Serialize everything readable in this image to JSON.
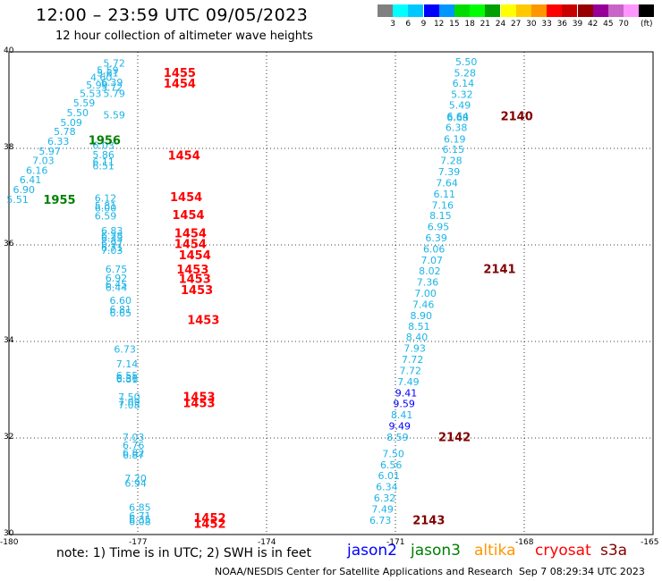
{
  "header": {
    "title": "12:00 – 23:59 UTC 09/05/2023",
    "subtitle": "12 hour collection of altimeter wave heights"
  },
  "legend": {
    "colors": [
      "#808080",
      "#00ffff",
      "#00c8ff",
      "#0000ff",
      "#0096ff",
      "#00dc00",
      "#00ff00",
      "#00a000",
      "#ffff00",
      "#ffc800",
      "#ff9600",
      "#ff0000",
      "#c80000",
      "#960000",
      "#960096",
      "#c864c8",
      "#ff96ff",
      "#000000"
    ],
    "labels": [
      "3",
      "6",
      "9",
      "12",
      "15",
      "18",
      "21",
      "24",
      "27",
      "30",
      "33",
      "36",
      "39",
      "42",
      "45",
      "70",
      "(ft)"
    ],
    "unit": "(ft)"
  },
  "axes": {
    "lat_labels": [
      "40",
      "38",
      "36",
      "34",
      "32",
      "30"
    ],
    "lon_labels": [
      "-180",
      "-177",
      "-174",
      "-171",
      "-168",
      "-165"
    ]
  },
  "track_colors": {
    "cyan": "#1cb4e6",
    "blue": "#0000ff",
    "red": "#ff0000",
    "darkred": "#800000",
    "green": "#008000"
  },
  "chart_data": {
    "type": "scatter",
    "x_range": [
      -180,
      -165
    ],
    "y_range": [
      30,
      40
    ],
    "points": [
      {
        "lon": -169.35,
        "lat": 39.78,
        "v": "5.50",
        "c": "cyan"
      },
      {
        "lon": -169.38,
        "lat": 39.55,
        "v": "5.28",
        "c": "cyan"
      },
      {
        "lon": -169.42,
        "lat": 39.33,
        "v": "6.14",
        "c": "cyan"
      },
      {
        "lon": -169.45,
        "lat": 39.1,
        "v": "5.32",
        "c": "cyan"
      },
      {
        "lon": -169.5,
        "lat": 38.88,
        "v": "5.49",
        "c": "cyan"
      },
      {
        "lon": -169.55,
        "lat": 38.65,
        "v": "6.64",
        "c": "cyan"
      },
      {
        "lon": -169.55,
        "lat": 38.62,
        "v": "6.68",
        "c": "cyan"
      },
      {
        "lon": -169.58,
        "lat": 38.42,
        "v": "6.38",
        "c": "cyan"
      },
      {
        "lon": -169.62,
        "lat": 38.18,
        "v": "6.19",
        "c": "cyan"
      },
      {
        "lon": -169.65,
        "lat": 37.96,
        "v": "6.15",
        "c": "cyan"
      },
      {
        "lon": -169.7,
        "lat": 37.73,
        "v": "7.28",
        "c": "cyan"
      },
      {
        "lon": -169.75,
        "lat": 37.5,
        "v": "7.39",
        "c": "cyan"
      },
      {
        "lon": -169.8,
        "lat": 37.27,
        "v": "7.64",
        "c": "cyan"
      },
      {
        "lon": -169.86,
        "lat": 37.04,
        "v": "6.11",
        "c": "cyan"
      },
      {
        "lon": -169.9,
        "lat": 36.81,
        "v": "7.16",
        "c": "cyan"
      },
      {
        "lon": -169.95,
        "lat": 36.59,
        "v": "8.15",
        "c": "cyan"
      },
      {
        "lon": -170.0,
        "lat": 36.36,
        "v": "6.95",
        "c": "cyan"
      },
      {
        "lon": -170.05,
        "lat": 36.13,
        "v": "6.39",
        "c": "cyan"
      },
      {
        "lon": -170.1,
        "lat": 35.9,
        "v": "6.06",
        "c": "cyan"
      },
      {
        "lon": -170.15,
        "lat": 35.67,
        "v": "7.07",
        "c": "cyan"
      },
      {
        "lon": -170.2,
        "lat": 35.44,
        "v": "8.02",
        "c": "cyan"
      },
      {
        "lon": -170.25,
        "lat": 35.21,
        "v": "7.36",
        "c": "cyan"
      },
      {
        "lon": -170.3,
        "lat": 34.98,
        "v": "7.00",
        "c": "cyan"
      },
      {
        "lon": -170.35,
        "lat": 34.75,
        "v": "7.46",
        "c": "cyan"
      },
      {
        "lon": -170.4,
        "lat": 34.52,
        "v": "8.90",
        "c": "cyan"
      },
      {
        "lon": -170.45,
        "lat": 34.3,
        "v": "8.51",
        "c": "cyan"
      },
      {
        "lon": -170.5,
        "lat": 34.07,
        "v": "8.40",
        "c": "cyan"
      },
      {
        "lon": -170.55,
        "lat": 33.84,
        "v": "7.93",
        "c": "cyan"
      },
      {
        "lon": -170.6,
        "lat": 33.61,
        "v": "7.72",
        "c": "cyan"
      },
      {
        "lon": -170.65,
        "lat": 33.38,
        "v": "7.72",
        "c": "cyan"
      },
      {
        "lon": -170.7,
        "lat": 33.15,
        "v": "7.49",
        "c": "cyan"
      },
      {
        "lon": -170.75,
        "lat": 32.92,
        "v": "9.41",
        "c": "blue"
      },
      {
        "lon": -170.8,
        "lat": 32.69,
        "v": "9.59",
        "c": "blue"
      },
      {
        "lon": -170.85,
        "lat": 32.46,
        "v": "8.41",
        "c": "cyan"
      },
      {
        "lon": -170.9,
        "lat": 32.23,
        "v": "9.49",
        "c": "blue"
      },
      {
        "lon": -170.95,
        "lat": 32.0,
        "v": "8.59",
        "c": "cyan"
      },
      {
        "lon": -171.05,
        "lat": 31.66,
        "v": "7.50",
        "c": "cyan"
      },
      {
        "lon": -171.1,
        "lat": 31.43,
        "v": "6.56",
        "c": "cyan"
      },
      {
        "lon": -171.15,
        "lat": 31.2,
        "v": "6.01",
        "c": "cyan"
      },
      {
        "lon": -171.2,
        "lat": 30.97,
        "v": "6.34",
        "c": "cyan"
      },
      {
        "lon": -171.25,
        "lat": 30.74,
        "v": "6.32",
        "c": "cyan"
      },
      {
        "lon": -171.3,
        "lat": 30.51,
        "v": "7.49",
        "c": "cyan"
      },
      {
        "lon": -171.35,
        "lat": 30.28,
        "v": "6.73",
        "c": "cyan"
      },
      {
        "lon": -177.55,
        "lat": 39.75,
        "v": "5.72",
        "c": "cyan"
      },
      {
        "lon": -177.7,
        "lat": 39.6,
        "v": "5.59",
        "c": "cyan"
      },
      {
        "lon": -177.7,
        "lat": 39.55,
        "v": "5.61",
        "c": "cyan"
      },
      {
        "lon": -177.85,
        "lat": 39.45,
        "v": "4.60",
        "c": "cyan"
      },
      {
        "lon": -177.6,
        "lat": 39.35,
        "v": "6.39",
        "c": "cyan"
      },
      {
        "lon": -177.95,
        "lat": 39.3,
        "v": "5.99",
        "c": "cyan"
      },
      {
        "lon": -177.6,
        "lat": 39.25,
        "v": "5.72",
        "c": "cyan"
      },
      {
        "lon": -178.1,
        "lat": 39.12,
        "v": "5.53",
        "c": "cyan"
      },
      {
        "lon": -177.55,
        "lat": 39.12,
        "v": "5.79",
        "c": "cyan"
      },
      {
        "lon": -178.25,
        "lat": 38.93,
        "v": "5.59",
        "c": "cyan"
      },
      {
        "lon": -178.4,
        "lat": 38.72,
        "v": "5.50",
        "c": "cyan"
      },
      {
        "lon": -177.55,
        "lat": 38.68,
        "v": "5.59",
        "c": "cyan"
      },
      {
        "lon": -178.55,
        "lat": 38.52,
        "v": "5.09",
        "c": "cyan"
      },
      {
        "lon": -178.7,
        "lat": 38.33,
        "v": "5.78",
        "c": "cyan"
      },
      {
        "lon": -178.85,
        "lat": 38.13,
        "v": "6.33",
        "c": "cyan"
      },
      {
        "lon": -177.8,
        "lat": 38.05,
        "v": "6.03",
        "c": "cyan"
      },
      {
        "lon": -179.05,
        "lat": 37.93,
        "v": "5.97",
        "c": "cyan"
      },
      {
        "lon": -177.8,
        "lat": 37.85,
        "v": "5.86",
        "c": "cyan"
      },
      {
        "lon": -179.2,
        "lat": 37.73,
        "v": "7.03",
        "c": "cyan"
      },
      {
        "lon": -177.8,
        "lat": 37.7,
        "v": "6.11",
        "c": "cyan"
      },
      {
        "lon": -177.8,
        "lat": 37.62,
        "v": "6.51",
        "c": "cyan"
      },
      {
        "lon": -179.35,
        "lat": 37.53,
        "v": "6.16",
        "c": "cyan"
      },
      {
        "lon": -179.5,
        "lat": 37.33,
        "v": "6.41",
        "c": "cyan"
      },
      {
        "lon": -179.65,
        "lat": 37.13,
        "v": "6.90",
        "c": "cyan"
      },
      {
        "lon": -179.8,
        "lat": 36.93,
        "v": "5.51",
        "c": "cyan"
      },
      {
        "lon": -177.75,
        "lat": 36.95,
        "v": "6.12",
        "c": "cyan"
      },
      {
        "lon": -177.75,
        "lat": 36.8,
        "v": "5.81",
        "c": "cyan"
      },
      {
        "lon": -177.75,
        "lat": 36.75,
        "v": "6.00",
        "c": "cyan"
      },
      {
        "lon": -177.75,
        "lat": 36.58,
        "v": "6.59",
        "c": "cyan"
      },
      {
        "lon": -177.6,
        "lat": 36.28,
        "v": "6.83",
        "c": "cyan"
      },
      {
        "lon": -177.6,
        "lat": 36.18,
        "v": "6.28",
        "c": "cyan"
      },
      {
        "lon": -177.6,
        "lat": 36.12,
        "v": "6.33",
        "c": "cyan"
      },
      {
        "lon": -177.6,
        "lat": 36.02,
        "v": "6.97",
        "c": "cyan"
      },
      {
        "lon": -177.6,
        "lat": 35.93,
        "v": "6.71",
        "c": "cyan"
      },
      {
        "lon": -177.6,
        "lat": 35.87,
        "v": "7.03",
        "c": "cyan"
      },
      {
        "lon": -177.5,
        "lat": 35.48,
        "v": "6.75",
        "c": "cyan"
      },
      {
        "lon": -177.5,
        "lat": 35.3,
        "v": "6.92",
        "c": "cyan"
      },
      {
        "lon": -177.5,
        "lat": 35.17,
        "v": "6.45",
        "c": "cyan"
      },
      {
        "lon": -177.5,
        "lat": 35.1,
        "v": "6.44",
        "c": "cyan"
      },
      {
        "lon": -177.4,
        "lat": 34.83,
        "v": "6.60",
        "c": "cyan"
      },
      {
        "lon": -177.4,
        "lat": 34.65,
        "v": "6.81",
        "c": "cyan"
      },
      {
        "lon": -177.4,
        "lat": 34.57,
        "v": "6.65",
        "c": "cyan"
      },
      {
        "lon": -177.3,
        "lat": 33.82,
        "v": "6.73",
        "c": "cyan"
      },
      {
        "lon": -177.25,
        "lat": 33.52,
        "v": "7.14",
        "c": "cyan"
      },
      {
        "lon": -177.25,
        "lat": 33.28,
        "v": "6.55",
        "c": "cyan"
      },
      {
        "lon": -177.25,
        "lat": 33.22,
        "v": "6.36",
        "c": "cyan"
      },
      {
        "lon": -177.25,
        "lat": 33.2,
        "v": "6.81",
        "c": "cyan"
      },
      {
        "lon": -177.2,
        "lat": 32.83,
        "v": "7.50",
        "c": "cyan"
      },
      {
        "lon": -177.2,
        "lat": 32.73,
        "v": "7.09",
        "c": "cyan"
      },
      {
        "lon": -177.2,
        "lat": 32.67,
        "v": "7.08",
        "c": "cyan"
      },
      {
        "lon": -177.1,
        "lat": 32.0,
        "v": "7.03",
        "c": "cyan"
      },
      {
        "lon": -177.1,
        "lat": 31.83,
        "v": "6.76",
        "c": "cyan"
      },
      {
        "lon": -177.1,
        "lat": 31.68,
        "v": "6.82",
        "c": "cyan"
      },
      {
        "lon": -177.1,
        "lat": 31.63,
        "v": "6.87",
        "c": "cyan"
      },
      {
        "lon": -177.05,
        "lat": 31.15,
        "v": "7.20",
        "c": "cyan"
      },
      {
        "lon": -177.05,
        "lat": 31.05,
        "v": "6.94",
        "c": "cyan"
      },
      {
        "lon": -176.95,
        "lat": 30.55,
        "v": "6.85",
        "c": "cyan"
      },
      {
        "lon": -176.95,
        "lat": 30.37,
        "v": "6.71",
        "c": "cyan"
      },
      {
        "lon": -176.95,
        "lat": 30.3,
        "v": "6.35",
        "c": "cyan"
      },
      {
        "lon": -176.95,
        "lat": 30.25,
        "v": "6.08",
        "c": "cyan"
      }
    ],
    "time_labels": [
      {
        "lon": -176.4,
        "lat": 39.55,
        "t": "1455",
        "c": "red"
      },
      {
        "lon": -176.4,
        "lat": 39.32,
        "t": "1454",
        "c": "red"
      },
      {
        "lon": -178.15,
        "lat": 38.15,
        "t": "1956",
        "c": "green"
      },
      {
        "lon": -176.3,
        "lat": 37.83,
        "t": "1454",
        "c": "red"
      },
      {
        "lon": -176.25,
        "lat": 36.97,
        "t": "1454",
        "c": "red"
      },
      {
        "lon": -179.2,
        "lat": 36.92,
        "t": "1955",
        "c": "green"
      },
      {
        "lon": -176.2,
        "lat": 36.6,
        "t": "1454",
        "c": "red"
      },
      {
        "lon": -176.15,
        "lat": 36.22,
        "t": "1454",
        "c": "red"
      },
      {
        "lon": -176.15,
        "lat": 36.0,
        "t": "1454",
        "c": "red"
      },
      {
        "lon": -176.05,
        "lat": 35.77,
        "t": "1454",
        "c": "red"
      },
      {
        "lon": -176.1,
        "lat": 35.47,
        "t": "1453",
        "c": "red"
      },
      {
        "lon": -176.05,
        "lat": 35.28,
        "t": "1453",
        "c": "red"
      },
      {
        "lon": -176.0,
        "lat": 35.05,
        "t": "1453",
        "c": "red"
      },
      {
        "lon": -175.85,
        "lat": 34.43,
        "t": "1453",
        "c": "red"
      },
      {
        "lon": -175.95,
        "lat": 32.83,
        "t": "1453",
        "c": "red"
      },
      {
        "lon": -175.95,
        "lat": 32.7,
        "t": "1453",
        "c": "red"
      },
      {
        "lon": -175.7,
        "lat": 30.32,
        "t": "1452",
        "c": "red"
      },
      {
        "lon": -175.7,
        "lat": 30.2,
        "t": "1452",
        "c": "red"
      },
      {
        "lon": -168.55,
        "lat": 38.65,
        "t": "2140",
        "c": "darkred"
      },
      {
        "lon": -168.95,
        "lat": 35.48,
        "t": "2141",
        "c": "darkred"
      },
      {
        "lon": -170.0,
        "lat": 32.0,
        "t": "2142",
        "c": "darkred"
      },
      {
        "lon": -170.6,
        "lat": 30.28,
        "t": "2143",
        "c": "darkred"
      }
    ]
  },
  "footer": {
    "note": "note:  1) Time is in UTC;  2) SWH is in feet",
    "satellites": [
      {
        "name": "jason2",
        "color": "#0000ff"
      },
      {
        "name": "jason3",
        "color": "#008000"
      },
      {
        "name": "altika",
        "color": "#ff9600"
      },
      {
        "name": "cryosat",
        "color": "#ff0000"
      },
      {
        "name": "s3a",
        "color": "#800000"
      }
    ],
    "credit": "NOAA/NESDIS Center for Satellite Applications and Research",
    "timestamp": "Sep  7 08:29:34 UTC 2023"
  }
}
